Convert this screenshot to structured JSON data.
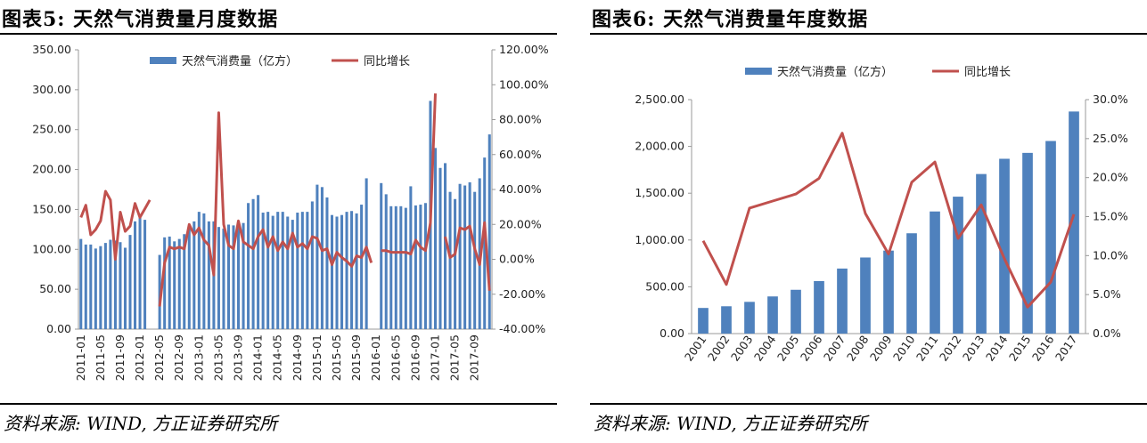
{
  "figures": [
    {
      "title": "图表5:   天然气消费量月度数据",
      "source": "资料来源: WIND, 方正证券研究所"
    },
    {
      "title": "图表6:   天然气消费量年度数据",
      "source": "资料来源: WIND, 方正证券研究所"
    }
  ],
  "chart_data": [
    {
      "type": "bar",
      "x": [
        "2011-01",
        "2011-02",
        "2011-03",
        "2011-04",
        "2011-05",
        "2011-06",
        "2011-07",
        "2011-08",
        "2011-09",
        "2011-10",
        "2011-11",
        "2011-12",
        "2012-01",
        "2012-02",
        "2012-03",
        "2012-04",
        "2012-05",
        "2012-06",
        "2012-07",
        "2012-08",
        "2012-09",
        "2012-10",
        "2012-11",
        "2012-12",
        "2013-01",
        "2013-02",
        "2013-03",
        "2013-04",
        "2013-05",
        "2013-06",
        "2013-07",
        "2013-08",
        "2013-09",
        "2013-10",
        "2013-11",
        "2013-12",
        "2014-01",
        "2014-02",
        "2014-03",
        "2014-04",
        "2014-05",
        "2014-06",
        "2014-07",
        "2014-08",
        "2014-09",
        "2014-10",
        "2014-11",
        "2014-12",
        "2015-01",
        "2015-02",
        "2015-03",
        "2015-04",
        "2015-05",
        "2015-06",
        "2015-07",
        "2015-08",
        "2015-09",
        "2015-10",
        "2015-11",
        "2015-12",
        "2016-01",
        "2016-02",
        "2016-03",
        "2016-04",
        "2016-05",
        "2016-06",
        "2016-07",
        "2016-08",
        "2016-09",
        "2016-10",
        "2016-11",
        "2016-12",
        "2017-01",
        "2017-02",
        "2017-03",
        "2017-04",
        "2017-05",
        "2017-06",
        "2017-07",
        "2017-08",
        "2017-09",
        "2017-10",
        "2017-11",
        "2017-12"
      ],
      "xticks": [
        "2011-01",
        "2011-05",
        "2011-09",
        "2012-01",
        "2012-05",
        "2012-09",
        "2013-01",
        "2013-05",
        "2013-09",
        "2014-01",
        "2014-05",
        "2014-09",
        "2015-01",
        "2015-05",
        "2015-09",
        "2016-01",
        "2016-05",
        "2016-09",
        "2017-01",
        "2017-05",
        "2017-09"
      ],
      "series": [
        {
          "name": "天然气消费量（亿方）",
          "type": "bar",
          "axis": "left",
          "color": "#4f81bd",
          "values": [
            113,
            106,
            106,
            101,
            104,
            108,
            112,
            111,
            109,
            102,
            118,
            135,
            140,
            137,
            null,
            null,
            93,
            115,
            116,
            110,
            113,
            119,
            126,
            135,
            147,
            145,
            135,
            135,
            128,
            126,
            131,
            130,
            127,
            133,
            158,
            163,
            168,
            146,
            147,
            142,
            147,
            147,
            141,
            137,
            146,
            147,
            147,
            160,
            181,
            178,
            165,
            143,
            141,
            143,
            147,
            148,
            145,
            156,
            189,
            null,
            null,
            183,
            169,
            154,
            154,
            154,
            152,
            179,
            155,
            156,
            158,
            286,
            227,
            202,
            208,
            172,
            163,
            182,
            180,
            184,
            172,
            189,
            215,
            244
          ]
        },
        {
          "name": "同比增长",
          "type": "line",
          "axis": "right",
          "color": "#c0504d",
          "values": [
            24,
            31,
            14,
            17,
            22,
            39,
            34,
            0,
            27,
            16,
            19,
            32,
            24,
            29,
            34,
            null,
            -27,
            -2,
            7,
            6,
            7,
            6,
            20,
            14,
            18,
            11,
            8,
            -9,
            84,
            20,
            8,
            6,
            22,
            10,
            8,
            6,
            13,
            17,
            7,
            13,
            5,
            10,
            6,
            15,
            7,
            9,
            6,
            13,
            12,
            5,
            6,
            -3,
            4,
            1,
            -1,
            -4,
            2,
            1,
            7,
            -2,
            null,
            5,
            5,
            4,
            4,
            4,
            4,
            3,
            11,
            7,
            5,
            21,
            95,
            null,
            13,
            1,
            3,
            18,
            17,
            19,
            6,
            -3,
            21,
            -18
          ]
        }
      ],
      "ylim_left": [
        0,
        350
      ],
      "ylim_right": [
        -40,
        120
      ],
      "yticks_left": [
        "0.00",
        "50.00",
        "100.00",
        "150.00",
        "200.00",
        "250.00",
        "300.00",
        "350.00"
      ],
      "yticks_right": [
        "-40.00%",
        "-20.00%",
        "0.00%",
        "20.00%",
        "40.00%",
        "60.00%",
        "80.00%",
        "100.00%",
        "120.00%"
      ],
      "legend": "top",
      "grid": false
    },
    {
      "type": "bar",
      "x": [
        "2001",
        "2002",
        "2003",
        "2004",
        "2005",
        "2006",
        "2007",
        "2008",
        "2009",
        "2010",
        "2011",
        "2012",
        "2013",
        "2014",
        "2015",
        "2016",
        "2017"
      ],
      "series": [
        {
          "name": "天然气消费量（亿方）",
          "type": "bar",
          "axis": "left",
          "color": "#4f81bd",
          "values": [
            274,
            292,
            339,
            397,
            468,
            561,
            695,
            813,
            887,
            1072,
            1305,
            1463,
            1705,
            1868,
            1931,
            2058,
            2373
          ]
        },
        {
          "name": "同比增长",
          "type": "line",
          "axis": "right",
          "color": "#c0504d",
          "values": [
            11.9,
            6.3,
            16.1,
            17.0,
            17.9,
            19.9,
            25.7,
            15.4,
            10.2,
            19.4,
            22.0,
            12.2,
            16.5,
            9.6,
            3.4,
            6.6,
            15.3
          ]
        }
      ],
      "ylim_left": [
        0,
        2500
      ],
      "ylim_right": [
        0,
        30
      ],
      "yticks_left": [
        "0.00",
        "500.00",
        "1,000.00",
        "1,500.00",
        "2,000.00",
        "2,500.00"
      ],
      "yticks_right": [
        "0.0%",
        "5.0%",
        "10.0%",
        "15.0%",
        "20.0%",
        "25.0%",
        "30.0%"
      ],
      "legend": "top",
      "grid": false
    }
  ]
}
